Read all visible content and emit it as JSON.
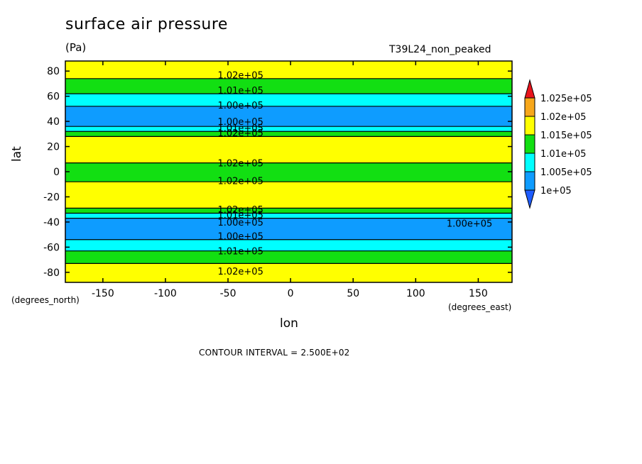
{
  "chart_data": {
    "type": "contour",
    "title": "surface air pressure",
    "units": "(Pa)",
    "run_name": "T39L24_non_peaked",
    "xlabel": "lon",
    "ylabel": "lat",
    "x_units": "(degrees_east)",
    "y_units": "(degrees_north)",
    "xlim": [
      -180,
      177
    ],
    "ylim": [
      -88,
      88
    ],
    "x_ticks": [
      -150,
      -100,
      -50,
      0,
      50,
      100,
      150
    ],
    "x_tick_labels": [
      "-150",
      "-100",
      "-50",
      "0",
      "50",
      "100",
      "150"
    ],
    "y_ticks": [
      -80,
      -60,
      -40,
      -20,
      0,
      20,
      40,
      60,
      80
    ],
    "y_tick_labels": [
      "-80",
      "-60",
      "-40",
      "-20",
      "0",
      "20",
      "40",
      "60",
      "80"
    ],
    "contour_interval_text": "CONTOUR INTERVAL = 2.500E+02",
    "colorbar": {
      "labels": [
        "1.025e+05",
        "1.02e+05",
        "1.015e+05",
        "1.01e+05",
        "1.005e+05",
        "1e+05"
      ],
      "colors": [
        "#e8141c",
        "#f7a71a",
        "#ffff00",
        "#12df12",
        "#00ffff",
        "#0e9cff",
        "#1e5cff"
      ]
    },
    "bands_by_latitude": [
      {
        "lat": [
          -88,
          -73
        ],
        "level": "1.015e+05-1.02e+05",
        "color": "#ffff00"
      },
      {
        "lat": [
          -73,
          -63
        ],
        "level": "1.01e+05-1.015e+05",
        "color": "#12df12"
      },
      {
        "lat": [
          -63,
          -54
        ],
        "level": "1.005e+05-1.01e+05",
        "color": "#00ffff"
      },
      {
        "lat": [
          -54,
          -37
        ],
        "level": "1e+05-1.005e+05",
        "color": "#0e9cff"
      },
      {
        "lat": [
          -37,
          -33
        ],
        "level": "1.005e+05-1.01e+05",
        "color": "#00ffff"
      },
      {
        "lat": [
          -33,
          -29
        ],
        "level": "1.01e+05-1.015e+05",
        "color": "#12df12"
      },
      {
        "lat": [
          -29,
          -8
        ],
        "level": "1.015e+05-1.02e+05",
        "color": "#ffff00"
      },
      {
        "lat": [
          -8,
          7
        ],
        "level": "1.01e+05-1.015e+05",
        "color": "#12df12"
      },
      {
        "lat": [
          7,
          28
        ],
        "level": "1.015e+05-1.02e+05",
        "color": "#ffff00"
      },
      {
        "lat": [
          28,
          32
        ],
        "level": "1.01e+05-1.015e+05",
        "color": "#12df12"
      },
      {
        "lat": [
          32,
          36
        ],
        "level": "1.005e+05-1.01e+05",
        "color": "#00ffff"
      },
      {
        "lat": [
          36,
          52
        ],
        "level": "1e+05-1.005e+05",
        "color": "#0e9cff"
      },
      {
        "lat": [
          52,
          62
        ],
        "level": "1.005e+05-1.01e+05",
        "color": "#00ffff"
      },
      {
        "lat": [
          62,
          74
        ],
        "level": "1.01e+05-1.015e+05",
        "color": "#12df12"
      },
      {
        "lat": [
          74,
          88
        ],
        "level": "1.015e+05-1.02e+05",
        "color": "#ffff00"
      }
    ],
    "contour_labels": [
      {
        "text": "1.02e+05",
        "lon": -40,
        "lat": 77
      },
      {
        "text": "1.01e+05",
        "lon": -40,
        "lat": 65
      },
      {
        "text": "1.00e+05",
        "lon": -40,
        "lat": 53
      },
      {
        "text": "1.00e+05",
        "lon": -40,
        "lat": 40
      },
      {
        "text": "1.01e+05",
        "lon": -40,
        "lat": 35
      },
      {
        "text": "1.02e+05",
        "lon": -40,
        "lat": 31
      },
      {
        "text": "1.02e+05",
        "lon": -40,
        "lat": 7
      },
      {
        "text": "1.02e+05",
        "lon": -40,
        "lat": -7
      },
      {
        "text": "1.02e+05",
        "lon": -40,
        "lat": -30
      },
      {
        "text": "1.01e+05",
        "lon": -40,
        "lat": -34
      },
      {
        "text": "1.00e+05",
        "lon": -40,
        "lat": -40
      },
      {
        "text": "1.00e+05",
        "lon": -40,
        "lat": -51
      },
      {
        "text": "1.01e+05",
        "lon": -40,
        "lat": -63
      },
      {
        "text": "1.02e+05",
        "lon": -40,
        "lat": -79
      },
      {
        "text": "1.00e+05",
        "lon": 143,
        "lat": -41
      }
    ]
  }
}
